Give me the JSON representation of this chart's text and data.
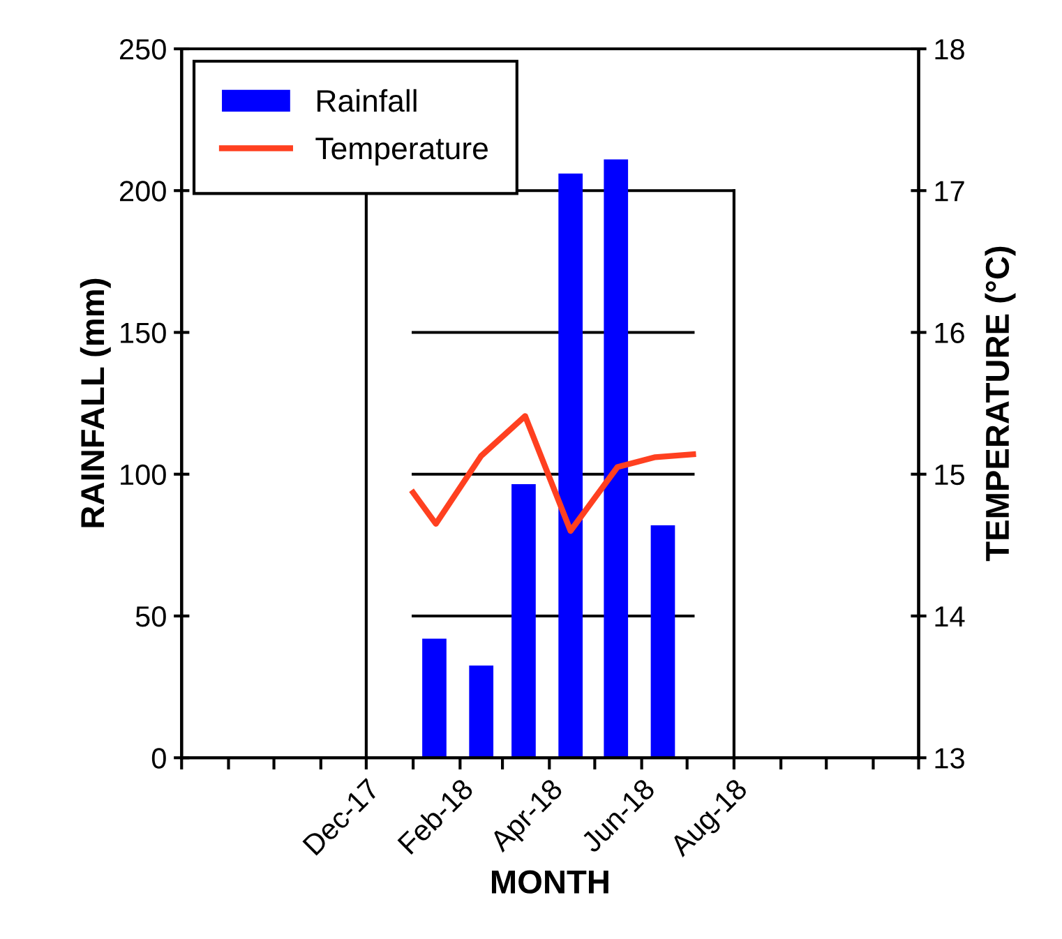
{
  "chart_data": {
    "type": "bar",
    "xlabel": "MONTH",
    "ylabel": "RAINFALL (mm)",
    "y2label": "TEMPERATURE (°C)",
    "x": [
      "2018-01-15",
      "2018-02-15",
      "2018-03-15",
      "2018-04-15",
      "2018-05-15",
      "2018-06-15"
    ],
    "series": [
      {
        "name": "Rainfall",
        "color": "#0000ff",
        "values": [
          42,
          32.5,
          96.5,
          206,
          211,
          82
        ]
      },
      {
        "name": "Temperature",
        "type": "line",
        "axis": "y2",
        "color": "#ff4020",
        "x": [
          "2018-01-01",
          "2018-01-16",
          "2018-02-15",
          "2018-03-16",
          "2018-04-15",
          "2018-05-16",
          "2018-06-10",
          "2018-07-05"
        ],
        "values": [
          14.87,
          14.65,
          15.13,
          15.41,
          14.6,
          15.05,
          15.12,
          15.14
        ]
      }
    ],
    "xlim": [
      "2017-08-01",
      "2018-12-01"
    ],
    "xticks": [
      {
        "value": "2017-08-01",
        "label": null
      },
      {
        "value": "2017-09-01",
        "label": null
      },
      {
        "value": "2017-10-01",
        "label": null
      },
      {
        "value": "2017-11-01",
        "label": null
      },
      {
        "value": "2017-12-01",
        "label": "Dec-17"
      },
      {
        "value": "2018-01-01",
        "label": null
      },
      {
        "value": "2018-02-01",
        "label": "Feb-18"
      },
      {
        "value": "2018-03-01",
        "label": null
      },
      {
        "value": "2018-04-01",
        "label": "Apr-18"
      },
      {
        "value": "2018-05-01",
        "label": null
      },
      {
        "value": "2018-06-01",
        "label": "Jun-18"
      },
      {
        "value": "2018-07-01",
        "label": null
      },
      {
        "value": "2018-08-01",
        "label": "Aug-18"
      },
      {
        "value": "2018-09-01",
        "label": null
      },
      {
        "value": "2018-10-01",
        "label": null
      },
      {
        "value": "2018-11-01",
        "label": null
      },
      {
        "value": "2018-12-01",
        "label": null
      }
    ],
    "ylim": [
      0,
      250
    ],
    "yticks": [
      0,
      50,
      100,
      150,
      200,
      250
    ],
    "y2lim": [
      13,
      18
    ],
    "y2ticks": [
      13,
      14,
      15,
      16,
      17,
      18
    ],
    "ref_lines": [
      {
        "axis": "y",
        "value": 50,
        "color": "#000000"
      },
      {
        "axis": "y",
        "value": 100,
        "color": "#000000"
      },
      {
        "axis": "y",
        "value": 150,
        "color": "#000000"
      },
      {
        "axis": "y",
        "value": 200,
        "color": "#000000"
      },
      {
        "axis": "x",
        "value": "2017-12-01",
        "color": "#000000"
      },
      {
        "axis": "x",
        "value": "2018-08-01",
        "color": "#000000"
      }
    ],
    "legend": "top left",
    "grid": false,
    "marker": "none",
    "line_style": "solid"
  }
}
